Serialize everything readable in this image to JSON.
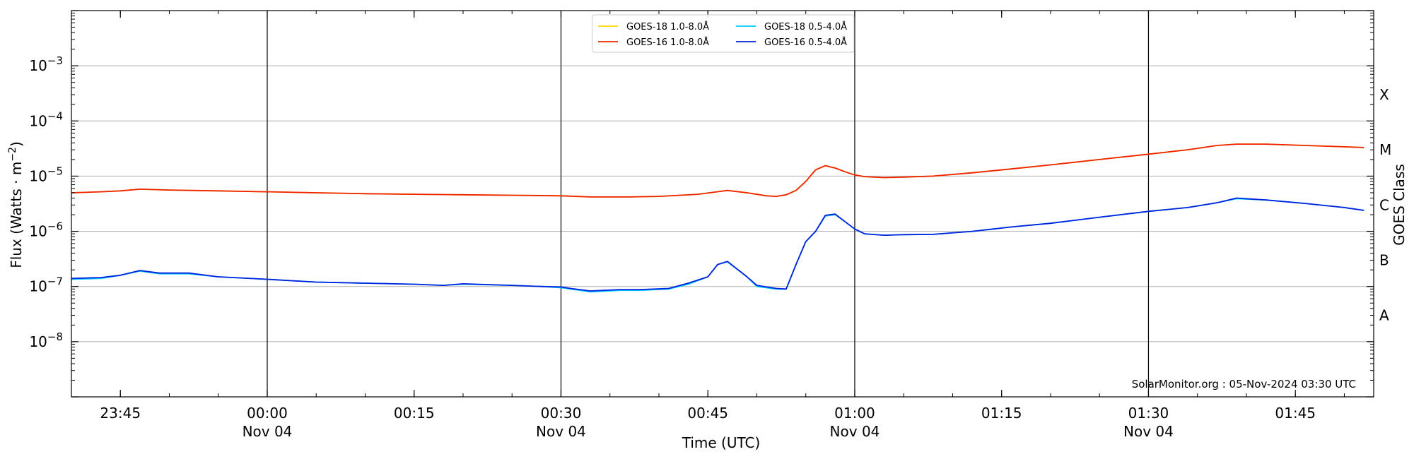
{
  "chart_data": {
    "type": "line",
    "title": "",
    "xlabel": "Time (UTC)",
    "ylabel": "Flux (Watts · m^-2)",
    "ylabel_right": "GOES Class",
    "y_scale": "log",
    "ylim": [
      1e-09,
      0.01
    ],
    "xlim": [
      "2024-11-03 23:40",
      "2024-11-04 01:53"
    ],
    "x_ticks": [
      {
        "time": "2024-11-03 23:45",
        "label": "23:45",
        "sublabel": ""
      },
      {
        "time": "2024-11-04 00:00",
        "label": "00:00",
        "sublabel": "Nov 04"
      },
      {
        "time": "2024-11-04 00:15",
        "label": "00:15",
        "sublabel": ""
      },
      {
        "time": "2024-11-04 00:30",
        "label": "00:30",
        "sublabel": "Nov 04"
      },
      {
        "time": "2024-11-04 00:45",
        "label": "00:45",
        "sublabel": ""
      },
      {
        "time": "2024-11-04 01:00",
        "label": "01:00",
        "sublabel": "Nov 04"
      },
      {
        "time": "2024-11-04 01:15",
        "label": "01:15",
        "sublabel": ""
      },
      {
        "time": "2024-11-04 01:30",
        "label": "01:30",
        "sublabel": "Nov 04"
      },
      {
        "time": "2024-11-04 01:45",
        "label": "01:45",
        "sublabel": ""
      }
    ],
    "y_ticks": [
      {
        "value": 1e-08,
        "base": "10",
        "exp": "−8"
      },
      {
        "value": 1e-07,
        "base": "10",
        "exp": "−7"
      },
      {
        "value": 1e-06,
        "base": "10",
        "exp": "−6"
      },
      {
        "value": 1e-05,
        "base": "10",
        "exp": "−5"
      },
      {
        "value": 0.0001,
        "base": "10",
        "exp": "−4"
      },
      {
        "value": 0.001,
        "base": "10",
        "exp": "−3"
      }
    ],
    "goes_classes": [
      {
        "label": "A",
        "value": 3e-08
      },
      {
        "label": "B",
        "value": 3e-07
      },
      {
        "label": "C",
        "value": 3e-06
      },
      {
        "label": "M",
        "value": 3e-05
      },
      {
        "label": "X",
        "value": 0.0003
      }
    ],
    "horizontal_grid": [
      1e-08,
      1e-07,
      1e-06,
      1e-05,
      0.0001,
      0.001
    ],
    "vertical_lines": [
      "2024-11-04 00:00",
      "2024-11-04 00:30",
      "2024-11-04 01:00",
      "2024-11-04 01:30"
    ],
    "legend_position": "top-center",
    "series": [
      {
        "name": "GOES-18 1.0-8.0Å",
        "color": "#ffd700",
        "x": [
          "2024-11-03 23:40",
          "2024-11-03 23:43",
          "2024-11-03 23:45",
          "2024-11-03 23:47",
          "2024-11-03 23:50",
          "2024-11-03 23:55",
          "2024-11-04 00:00",
          "2024-11-04 00:05",
          "2024-11-04 00:10",
          "2024-11-04 00:15",
          "2024-11-04 00:20",
          "2024-11-04 00:25",
          "2024-11-04 00:30",
          "2024-11-04 00:33",
          "2024-11-04 00:37",
          "2024-11-04 00:40",
          "2024-11-04 00:44",
          "2024-11-04 00:47",
          "2024-11-04 00:49",
          "2024-11-04 00:51",
          "2024-11-04 00:52",
          "2024-11-04 00:53",
          "2024-11-04 00:54",
          "2024-11-04 00:55",
          "2024-11-04 00:56",
          "2024-11-04 00:57",
          "2024-11-04 00:58",
          "2024-11-04 00:59",
          "2024-11-04 01:00",
          "2024-11-04 01:01",
          "2024-11-04 01:03",
          "2024-11-04 01:05",
          "2024-11-04 01:08",
          "2024-11-04 01:12",
          "2024-11-04 01:16",
          "2024-11-04 01:20",
          "2024-11-04 01:25",
          "2024-11-04 01:30",
          "2024-11-04 01:34",
          "2024-11-04 01:37",
          "2024-11-04 01:39",
          "2024-11-04 01:42",
          "2024-11-04 01:46",
          "2024-11-04 01:50",
          "2024-11-04 01:52"
        ],
        "y": [
          5e-06,
          5.2e-06,
          5.4e-06,
          5.8e-06,
          5.6e-06,
          5.4e-06,
          5.2e-06,
          5e-06,
          4.8e-06,
          4.7e-06,
          4.6e-06,
          4.5e-06,
          4.4e-06,
          4.2e-06,
          4.2e-06,
          4.3e-06,
          4.7e-06,
          5.5e-06,
          5e-06,
          4.4e-06,
          4.3e-06,
          4.6e-06,
          5.5e-06,
          8e-06,
          1.3e-05,
          1.55e-05,
          1.4e-05,
          1.2e-05,
          1.05e-05,
          9.8e-06,
          9.4e-06,
          9.6e-06,
          1e-05,
          1.15e-05,
          1.35e-05,
          1.6e-05,
          2e-05,
          2.5e-05,
          3e-05,
          3.6e-05,
          3.8e-05,
          3.8e-05,
          3.6e-05,
          3.4e-05,
          3.3e-05
        ]
      },
      {
        "name": "GOES-16 1.0-8.0Å",
        "color": "#ee2200",
        "x": [
          "2024-11-03 23:40",
          "2024-11-03 23:43",
          "2024-11-03 23:45",
          "2024-11-03 23:47",
          "2024-11-03 23:50",
          "2024-11-03 23:55",
          "2024-11-04 00:00",
          "2024-11-04 00:05",
          "2024-11-04 00:10",
          "2024-11-04 00:15",
          "2024-11-04 00:20",
          "2024-11-04 00:25",
          "2024-11-04 00:30",
          "2024-11-04 00:33",
          "2024-11-04 00:37",
          "2024-11-04 00:40",
          "2024-11-04 00:44",
          "2024-11-04 00:47",
          "2024-11-04 00:49",
          "2024-11-04 00:51",
          "2024-11-04 00:52",
          "2024-11-04 00:53",
          "2024-11-04 00:54",
          "2024-11-04 00:55",
          "2024-11-04 00:56",
          "2024-11-04 00:57",
          "2024-11-04 00:58",
          "2024-11-04 00:59",
          "2024-11-04 01:00",
          "2024-11-04 01:01",
          "2024-11-04 01:03",
          "2024-11-04 01:05",
          "2024-11-04 01:08",
          "2024-11-04 01:12",
          "2024-11-04 01:16",
          "2024-11-04 01:20",
          "2024-11-04 01:25",
          "2024-11-04 01:30",
          "2024-11-04 01:34",
          "2024-11-04 01:37",
          "2024-11-04 01:39",
          "2024-11-04 01:42",
          "2024-11-04 01:46",
          "2024-11-04 01:50",
          "2024-11-04 01:52"
        ],
        "y": [
          5e-06,
          5.2e-06,
          5.4e-06,
          5.8e-06,
          5.6e-06,
          5.4e-06,
          5.2e-06,
          5e-06,
          4.8e-06,
          4.7e-06,
          4.6e-06,
          4.5e-06,
          4.4e-06,
          4.2e-06,
          4.2e-06,
          4.3e-06,
          4.7e-06,
          5.5e-06,
          5e-06,
          4.4e-06,
          4.3e-06,
          4.6e-06,
          5.5e-06,
          8e-06,
          1.3e-05,
          1.55e-05,
          1.4e-05,
          1.2e-05,
          1.05e-05,
          9.8e-06,
          9.4e-06,
          9.6e-06,
          1e-05,
          1.15e-05,
          1.35e-05,
          1.6e-05,
          2e-05,
          2.5e-05,
          3e-05,
          3.6e-05,
          3.8e-05,
          3.8e-05,
          3.6e-05,
          3.4e-05,
          3.3e-05
        ]
      },
      {
        "name": "GOES-18 0.5-4.0Å",
        "color": "#00ccff",
        "x": [
          "2024-11-03 23:40",
          "2024-11-03 23:43",
          "2024-11-03 23:45",
          "2024-11-03 23:47",
          "2024-11-03 23:49",
          "2024-11-03 23:52",
          "2024-11-03 23:55",
          "2024-11-04 00:00",
          "2024-11-04 00:05",
          "2024-11-04 00:10",
          "2024-11-04 00:15",
          "2024-11-04 00:18",
          "2024-11-04 00:20",
          "2024-11-04 00:25",
          "2024-11-04 00:28",
          "2024-11-04 00:30",
          "2024-11-04 00:31",
          "2024-11-04 00:33",
          "2024-11-04 00:36",
          "2024-11-04 00:38",
          "2024-11-04 00:41",
          "2024-11-04 00:43",
          "2024-11-04 00:45",
          "2024-11-04 00:46",
          "2024-11-04 00:47",
          "2024-11-04 00:49",
          "2024-11-04 00:50",
          "2024-11-04 00:52",
          "2024-11-04 00:53",
          "2024-11-04 00:54",
          "2024-11-04 00:55",
          "2024-11-04 00:56",
          "2024-11-04 00:57",
          "2024-11-04 00:58",
          "2024-11-04 00:59",
          "2024-11-04 01:00",
          "2024-11-04 01:01",
          "2024-11-04 01:03",
          "2024-11-04 01:05",
          "2024-11-04 01:08",
          "2024-11-04 01:12",
          "2024-11-04 01:16",
          "2024-11-04 01:20",
          "2024-11-04 01:25",
          "2024-11-04 01:30",
          "2024-11-04 01:34",
          "2024-11-04 01:37",
          "2024-11-04 01:39",
          "2024-11-04 01:42",
          "2024-11-04 01:46",
          "2024-11-04 01:50",
          "2024-11-04 01:52"
        ],
        "y": [
          1.35e-07,
          1.4e-07,
          1.6e-07,
          1.9e-07,
          1.7e-07,
          1.7e-07,
          1.5e-07,
          1.35e-07,
          1.2e-07,
          1.15e-07,
          1.1e-07,
          1.05e-07,
          1.1e-07,
          1.05e-07,
          1e-07,
          9.5e-08,
          9e-08,
          8e-08,
          8.5e-08,
          8.5e-08,
          9e-08,
          1.1e-07,
          1.5e-07,
          2.5e-07,
          2.8e-07,
          1.5e-07,
          1e-07,
          9e-08,
          9e-08,
          2.5e-07,
          6.5e-07,
          1e-06,
          1.9e-06,
          2e-06,
          1.5e-06,
          1.1e-06,
          9e-07,
          8.5e-07,
          8.7e-07,
          8.8e-07,
          1e-06,
          1.2e-06,
          1.4e-06,
          1.8e-06,
          2.3e-06,
          2.7e-06,
          3.3e-06,
          3.9e-06,
          3.7e-06,
          3.2e-06,
          2.7e-06,
          2.4e-06
        ]
      },
      {
        "name": "GOES-16 0.5-4.0Å",
        "color": "#0022dd",
        "x": [
          "2024-11-03 23:40",
          "2024-11-03 23:43",
          "2024-11-03 23:45",
          "2024-11-03 23:47",
          "2024-11-03 23:49",
          "2024-11-03 23:52",
          "2024-11-03 23:55",
          "2024-11-04 00:00",
          "2024-11-04 00:05",
          "2024-11-04 00:10",
          "2024-11-04 00:15",
          "2024-11-04 00:18",
          "2024-11-04 00:20",
          "2024-11-04 00:25",
          "2024-11-04 00:28",
          "2024-11-04 00:30",
          "2024-11-04 00:31",
          "2024-11-04 00:33",
          "2024-11-04 00:36",
          "2024-11-04 00:38",
          "2024-11-04 00:41",
          "2024-11-04 00:43",
          "2024-11-04 00:45",
          "2024-11-04 00:46",
          "2024-11-04 00:47",
          "2024-11-04 00:49",
          "2024-11-04 00:50",
          "2024-11-04 00:52",
          "2024-11-04 00:53",
          "2024-11-04 00:54",
          "2024-11-04 00:55",
          "2024-11-04 00:56",
          "2024-11-04 00:57",
          "2024-11-04 00:58",
          "2024-11-04 00:59",
          "2024-11-04 01:00",
          "2024-11-04 01:01",
          "2024-11-04 01:03",
          "2024-11-04 01:05",
          "2024-11-04 01:08",
          "2024-11-04 01:12",
          "2024-11-04 01:16",
          "2024-11-04 01:20",
          "2024-11-04 01:25",
          "2024-11-04 01:30",
          "2024-11-04 01:34",
          "2024-11-04 01:37",
          "2024-11-04 01:39",
          "2024-11-04 01:42",
          "2024-11-04 01:46",
          "2024-11-04 01:50",
          "2024-11-04 01:52"
        ],
        "y": [
          1.4e-07,
          1.45e-07,
          1.6e-07,
          1.95e-07,
          1.75e-07,
          1.75e-07,
          1.5e-07,
          1.35e-07,
          1.2e-07,
          1.15e-07,
          1.1e-07,
          1.05e-07,
          1.12e-07,
          1.05e-07,
          1e-07,
          9.8e-08,
          9.2e-08,
          8.3e-08,
          8.8e-08,
          8.8e-08,
          9.2e-08,
          1.15e-07,
          1.5e-07,
          2.5e-07,
          2.85e-07,
          1.5e-07,
          1.05e-07,
          9.2e-08,
          9e-08,
          2.5e-07,
          6.5e-07,
          1e-06,
          1.95e-06,
          2.05e-06,
          1.5e-06,
          1.1e-06,
          9e-07,
          8.5e-07,
          8.7e-07,
          8.8e-07,
          1e-06,
          1.2e-06,
          1.4e-06,
          1.8e-06,
          2.3e-06,
          2.7e-06,
          3.3e-06,
          4e-06,
          3.7e-06,
          3.2e-06,
          2.7e-06,
          2.4e-06
        ]
      }
    ]
  },
  "footer": {
    "credit": "SolarMonitor.org : 05-Nov-2024 03:30 UTC"
  }
}
